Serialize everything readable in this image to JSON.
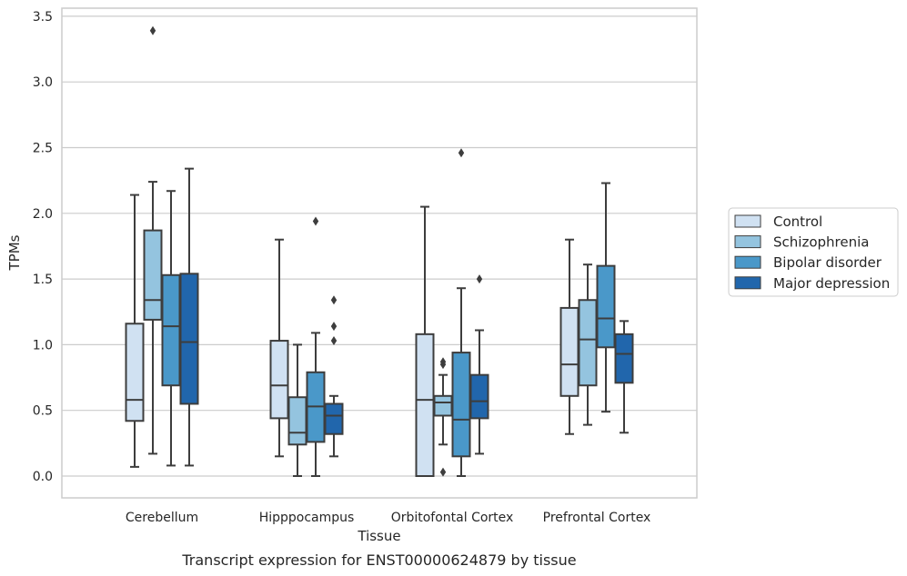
{
  "chart_data": {
    "type": "box",
    "title": "",
    "caption": "Transcript expression for ENST00000624879 by tissue",
    "xlabel": "Tissue",
    "ylabel": "TPMs",
    "ylim": [
      -0.16,
      3.57
    ],
    "yticks": [
      "0.0",
      "0.5",
      "1.0",
      "1.5",
      "2.0",
      "2.5",
      "3.0",
      "3.5"
    ],
    "grid": "horizontal",
    "legend_position": "right",
    "categories": [
      "Cerebellum",
      "Hipppocampus",
      "Orbitofontal Cortex",
      "Prefrontal Cortex"
    ],
    "series": [
      {
        "name": "Control",
        "color": "#d0e1f2",
        "boxes": [
          {
            "min": 0.07,
            "q1": 0.42,
            "median": 0.58,
            "q3": 1.16,
            "max": 2.14,
            "outliers": []
          },
          {
            "min": 0.15,
            "q1": 0.44,
            "median": 0.69,
            "q3": 1.03,
            "max": 1.8,
            "outliers": []
          },
          {
            "min": 0.0,
            "q1": 0.0,
            "median": 0.58,
            "q3": 1.08,
            "max": 2.05,
            "outliers": []
          },
          {
            "min": 0.32,
            "q1": 0.61,
            "median": 0.85,
            "q3": 1.28,
            "max": 1.8,
            "outliers": []
          }
        ]
      },
      {
        "name": "Schizophrenia",
        "color": "#94c4df",
        "boxes": [
          {
            "min": 0.17,
            "q1": 1.19,
            "median": 1.34,
            "q3": 1.87,
            "max": 2.24,
            "outliers": [
              3.39
            ]
          },
          {
            "min": 0.0,
            "q1": 0.24,
            "median": 0.33,
            "q3": 0.6,
            "max": 1.0,
            "outliers": []
          },
          {
            "min": 0.24,
            "q1": 0.46,
            "median": 0.56,
            "q3": 0.61,
            "max": 0.77,
            "outliers": [
              0.87,
              0.85,
              0.03
            ]
          },
          {
            "min": 0.39,
            "q1": 0.69,
            "median": 1.04,
            "q3": 1.34,
            "max": 1.61,
            "outliers": []
          }
        ]
      },
      {
        "name": "Bipolar disorder",
        "color": "#4a98c9",
        "boxes": [
          {
            "min": 0.08,
            "q1": 0.69,
            "median": 1.14,
            "q3": 1.53,
            "max": 2.17,
            "outliers": []
          },
          {
            "min": 0.0,
            "q1": 0.26,
            "median": 0.53,
            "q3": 0.79,
            "max": 1.09,
            "outliers": [
              1.94
            ]
          },
          {
            "min": 0.0,
            "q1": 0.15,
            "median": 0.43,
            "q3": 0.94,
            "max": 1.43,
            "outliers": [
              2.46
            ]
          },
          {
            "min": 0.49,
            "q1": 0.98,
            "median": 1.2,
            "q3": 1.6,
            "max": 2.23,
            "outliers": []
          }
        ]
      },
      {
        "name": "Major depression",
        "color": "#2166ac",
        "boxes": [
          {
            "min": 0.08,
            "q1": 0.55,
            "median": 1.02,
            "q3": 1.54,
            "max": 2.34,
            "outliers": []
          },
          {
            "min": 0.15,
            "q1": 0.32,
            "median": 0.46,
            "q3": 0.55,
            "max": 0.61,
            "outliers": [
              1.34,
              1.14,
              1.03
            ]
          },
          {
            "min": 0.17,
            "q1": 0.44,
            "median": 0.57,
            "q3": 0.77,
            "max": 1.11,
            "outliers": [
              1.5
            ]
          },
          {
            "min": 0.33,
            "q1": 0.71,
            "median": 0.93,
            "q3": 1.08,
            "max": 1.18,
            "outliers": []
          }
        ]
      }
    ]
  }
}
